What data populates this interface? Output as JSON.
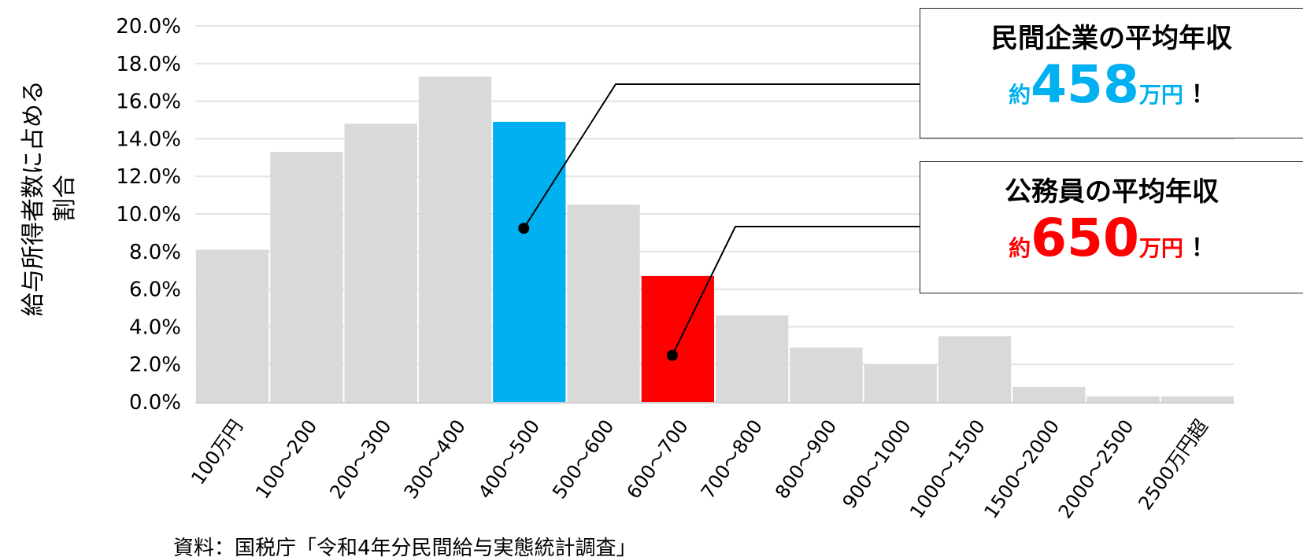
{
  "chart_data": {
    "type": "bar",
    "categories": [
      "100万円",
      "100～200",
      "200～300",
      "300～400",
      "400～500",
      "500～600",
      "600～700",
      "700～800",
      "800～900",
      "900～1000",
      "1000～1500",
      "1500～2000",
      "2000～2500",
      "2500万円超"
    ],
    "values": [
      8.1,
      13.3,
      14.8,
      17.3,
      14.9,
      10.5,
      6.7,
      4.6,
      2.9,
      2.0,
      3.5,
      0.8,
      0.3,
      0.3
    ],
    "ylabel": "給与所得者数に占める割合",
    "ylabel_lines": [
      "給与所得者数に占める",
      "割合"
    ],
    "ylim": [
      0,
      20
    ],
    "yticks": [
      "0.0%",
      "2.0%",
      "4.0%",
      "6.0%",
      "8.0%",
      "10.0%",
      "12.0%",
      "14.0%",
      "16.0%",
      "18.0%",
      "20.0%"
    ],
    "grid": true,
    "base_color": "#d9d9d9",
    "highlights": [
      {
        "category": "400～500",
        "color": "#00b0f0"
      },
      {
        "category": "600～700",
        "color": "#ff0000"
      }
    ]
  },
  "callouts": [
    {
      "title": "民間企業の平均年収",
      "prefix": "約",
      "amount": "458",
      "unit": "万円",
      "suffix": "！",
      "color": "#00b0f0",
      "points_to": "400～500"
    },
    {
      "title": "公務員の平均年収",
      "prefix": "約",
      "amount": "650",
      "unit": "万円",
      "suffix": "！",
      "color": "#ff0000",
      "points_to": "600～700"
    }
  ],
  "source": "資料：国税庁「令和4年分民間給与実態統計調査」"
}
